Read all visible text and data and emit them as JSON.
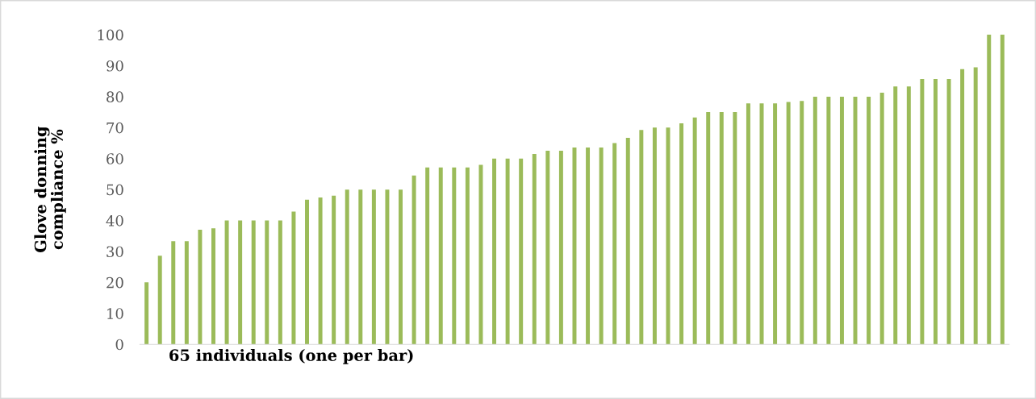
{
  "chart_data": {
    "type": "bar",
    "ylabel": "Glove donning\ncompliance %",
    "xlabel": "65 individuals (one per bar)",
    "categories": [
      null,
      null,
      null,
      null,
      null,
      null,
      null,
      null,
      null,
      null,
      null,
      null,
      null,
      null,
      null,
      null,
      null,
      null,
      null,
      null,
      null,
      null,
      null,
      null,
      null,
      null,
      null,
      null,
      null,
      null,
      null,
      null,
      null,
      null,
      null,
      null,
      null,
      null,
      null,
      null,
      null,
      null,
      null,
      null,
      null,
      null,
      null,
      null,
      null,
      null,
      null,
      null,
      null,
      null,
      null,
      null,
      null,
      null,
      null,
      null,
      null,
      null,
      null,
      null,
      null
    ],
    "values": [
      20,
      28.6,
      33.3,
      33.3,
      37,
      37.5,
      40,
      40,
      40,
      40,
      40,
      42.9,
      46.7,
      47.4,
      48,
      50,
      50,
      50,
      50,
      50,
      54.5,
      57.1,
      57.1,
      57.1,
      57.1,
      58,
      60,
      60,
      60,
      61.5,
      62.5,
      62.5,
      63.6,
      63.6,
      63.6,
      65,
      66.7,
      69.2,
      70,
      70,
      71.4,
      73.3,
      75,
      75,
      75,
      77.8,
      77.8,
      77.8,
      78.3,
      78.6,
      80,
      80,
      80,
      80,
      80,
      81.3,
      83.3,
      83.3,
      85.7,
      85.7,
      85.7,
      88.9,
      89.5,
      100,
      100
    ],
    "color": "#9bbb59",
    "ylim": [
      0,
      100
    ],
    "yticks": [
      0,
      10,
      20,
      30,
      40,
      50,
      60,
      70,
      80,
      90,
      100
    ],
    "grid": false,
    "tick_labels": "y"
  }
}
